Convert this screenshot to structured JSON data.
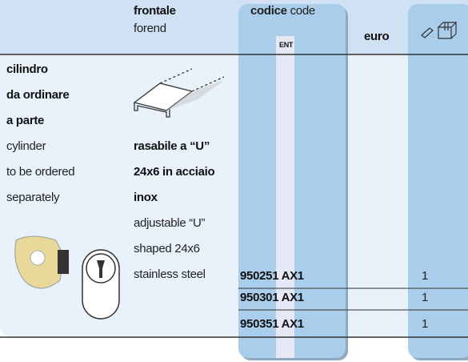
{
  "header": {
    "frontale": {
      "it": "frontale",
      "en": "forend"
    },
    "codice": {
      "it": "codice",
      "en": "code"
    },
    "ent": "ENT",
    "euro": "euro"
  },
  "description": {
    "it": [
      "cilindro",
      "da ordinare",
      "a parte"
    ],
    "en": [
      "cylinder",
      "to be ordered",
      "separately"
    ]
  },
  "profile": {
    "it": [
      "rasabile a “U”",
      "24x6 in acciaio",
      "inox"
    ],
    "en": [
      "adjustable “U”",
      "shaped 24x6",
      "stainless steel"
    ]
  },
  "rows": [
    {
      "code": "950251 AX1",
      "qty": "1"
    },
    {
      "code": "950301 AX1",
      "qty": "1"
    },
    {
      "code": "950351 AX1",
      "qty": "1"
    }
  ]
}
